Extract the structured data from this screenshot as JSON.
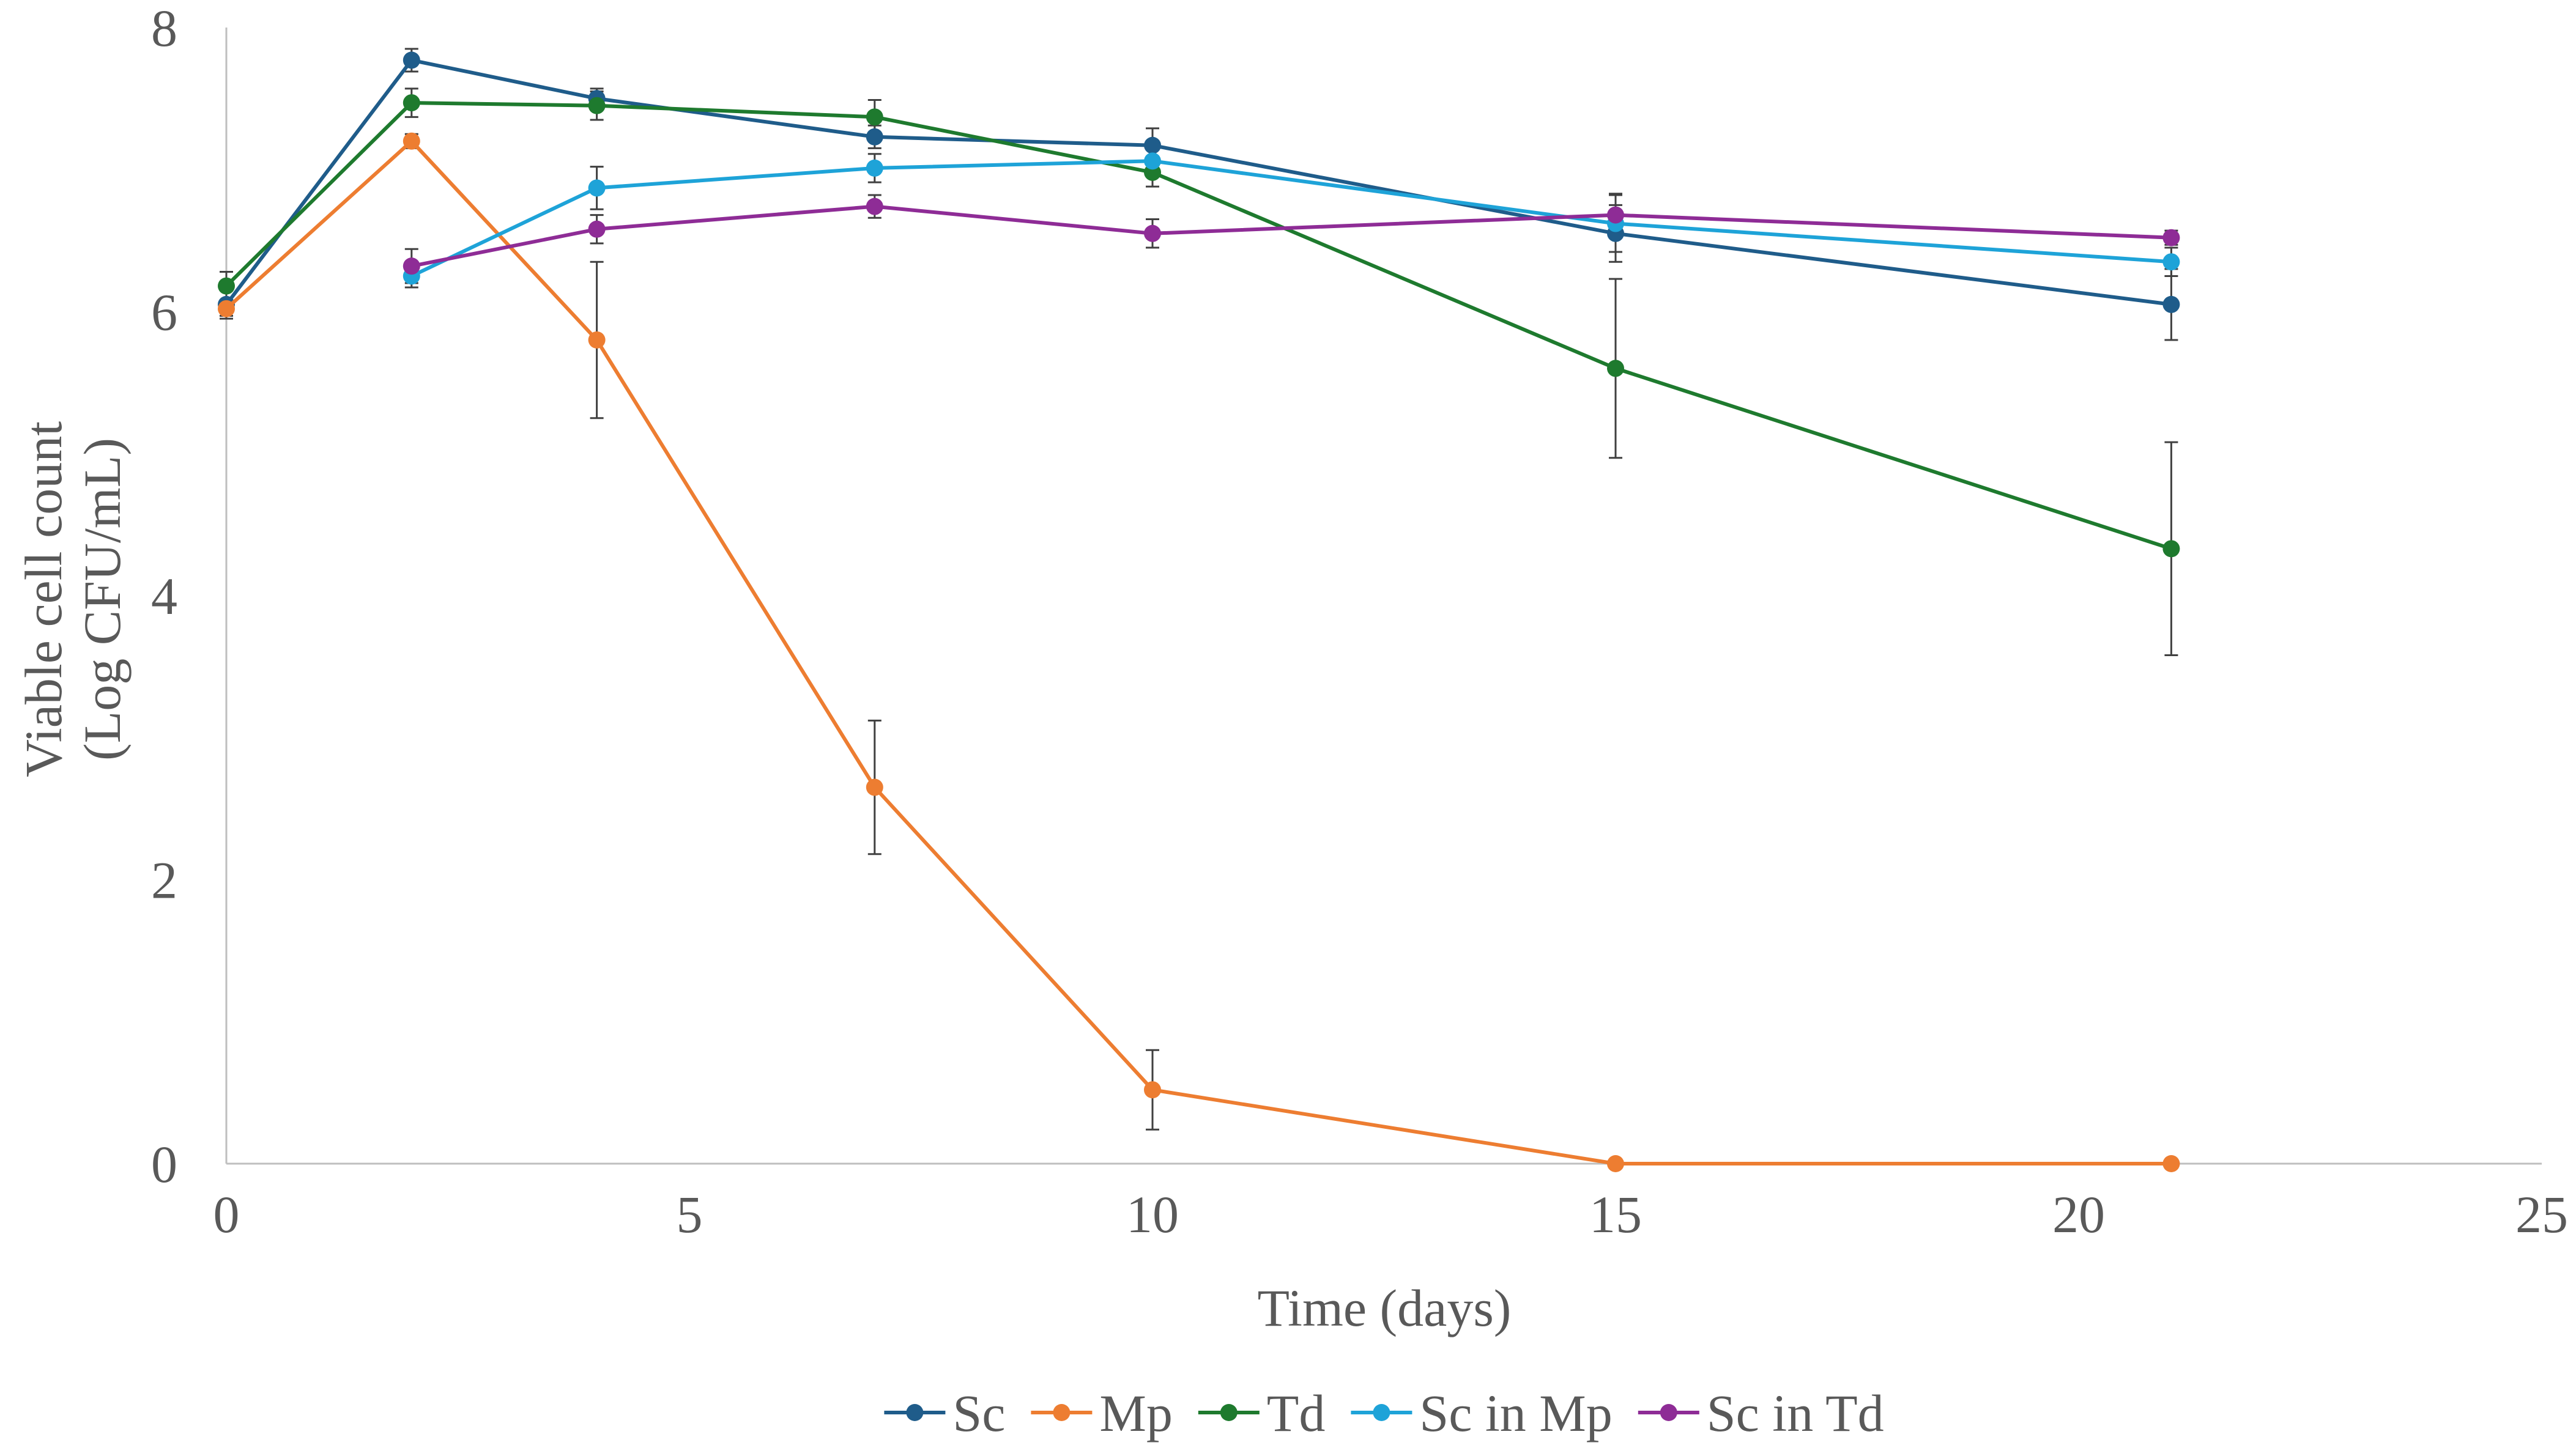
{
  "chart_data": {
    "type": "line",
    "title": "",
    "xlabel": "Time (days)",
    "ylabel_lines": [
      "Viable cell count",
      "(Log CFU/mL)"
    ],
    "xlim": [
      0,
      25
    ],
    "ylim": [
      0,
      8
    ],
    "x_ticks": [
      0,
      5,
      10,
      15,
      20,
      25
    ],
    "y_ticks": [
      0,
      2,
      4,
      6,
      8
    ],
    "x_tick_labels": [
      "0",
      "5",
      "10",
      "15",
      "20",
      "25"
    ],
    "y_tick_labels": [
      "0",
      "2",
      "4",
      "6",
      "8"
    ],
    "grid": false,
    "legend_position": "bottom",
    "series": [
      {
        "name": "Sc",
        "color": "#1f5c8a",
        "points": [
          {
            "x": 0,
            "y": 6.05,
            "err": 0.1
          },
          {
            "x": 2,
            "y": 7.77,
            "err": 0.08
          },
          {
            "x": 4,
            "y": 7.5,
            "err": 0.07
          },
          {
            "x": 7,
            "y": 7.23,
            "err": 0.08
          },
          {
            "x": 10,
            "y": 7.17,
            "err": 0.12
          },
          {
            "x": 15,
            "y": 6.55,
            "err": 0.2
          },
          {
            "x": 21,
            "y": 6.05,
            "err": 0.25
          }
        ]
      },
      {
        "name": "Mp",
        "color": "#ed7d31",
        "points": [
          {
            "x": 0,
            "y": 6.02,
            "err": 0.05
          },
          {
            "x": 2,
            "y": 7.2,
            "err": 0.05
          },
          {
            "x": 4,
            "y": 5.8,
            "err": 0.55
          },
          {
            "x": 7,
            "y": 2.65,
            "err": 0.47
          },
          {
            "x": 10,
            "y": 0.52,
            "err": 0.28
          },
          {
            "x": 15,
            "y": 0,
            "err": 0
          },
          {
            "x": 21,
            "y": 0,
            "err": 0
          }
        ]
      },
      {
        "name": "Td",
        "color": "#1e7a2e",
        "points": [
          {
            "x": 0,
            "y": 6.18,
            "err": 0.1
          },
          {
            "x": 2,
            "y": 7.47,
            "err": 0.1
          },
          {
            "x": 4,
            "y": 7.45,
            "err": 0.1
          },
          {
            "x": 7,
            "y": 7.37,
            "err": 0.12
          },
          {
            "x": 10,
            "y": 6.98,
            "err": 0.1
          },
          {
            "x": 15,
            "y": 5.6,
            "err": 0.63
          },
          {
            "x": 21,
            "y": 4.33,
            "err": 0.75
          }
        ]
      },
      {
        "name": "Sc in Mp",
        "color": "#1ea3d8",
        "points": [
          {
            "x": 2,
            "y": 6.25,
            "err": 0.08
          },
          {
            "x": 4,
            "y": 6.87,
            "err": 0.15
          },
          {
            "x": 7,
            "y": 7.01,
            "err": 0.1
          },
          {
            "x": 10,
            "y": 7.06,
            "err": 0.1
          },
          {
            "x": 15,
            "y": 6.62,
            "err": 0.2
          },
          {
            "x": 21,
            "y": 6.35,
            "err": 0.1
          }
        ]
      },
      {
        "name": "Sc in Td",
        "color": "#8e2c96",
        "points": [
          {
            "x": 2,
            "y": 6.32,
            "err": 0.12
          },
          {
            "x": 4,
            "y": 6.58,
            "err": 0.1
          },
          {
            "x": 7,
            "y": 6.74,
            "err": 0.08
          },
          {
            "x": 10,
            "y": 6.55,
            "err": 0.1
          },
          {
            "x": 15,
            "y": 6.68,
            "err": 0.15
          },
          {
            "x": 21,
            "y": 6.52,
            "err": 0.05
          }
        ]
      }
    ],
    "axis_color": "#bfbfbf",
    "errorbar_color": "#404040"
  }
}
